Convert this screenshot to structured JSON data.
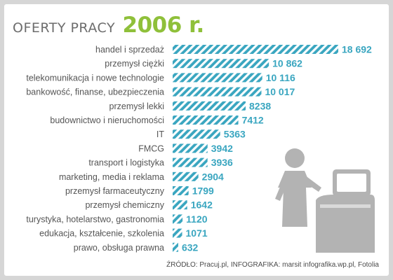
{
  "header": {
    "title": "OFERTY PRACY",
    "year": "2006 r."
  },
  "footer": {
    "source": "ŹRÓDŁO: Pracuj.pl, INFOGRAFIKA: marsit infografika.wp.pl, Fotolia"
  },
  "colors": {
    "bar": "#3aa6c0",
    "value": "#3aa6c0",
    "year": "#8fc03a",
    "illustration": "#b3b3b3"
  },
  "illustration": {
    "icon": "person-at-computer-icon"
  },
  "chart_data": {
    "type": "bar",
    "orientation": "horizontal",
    "categories": [
      "handel i sprzedaż",
      "przemysł ciężki",
      "telekomunikacja i nowe technologie",
      "bankowość, finanse, ubezpieczenia",
      "przemysł lekki",
      "budownictwo i nieruchomości",
      "IT",
      "FMCG",
      "transport i logistyka",
      "marketing, media i reklama",
      "przemysł farmaceutyczny",
      "przemysł chemiczny",
      "turystyka, hotelarstwo, gastronomia",
      "edukacja, kształcenie, szkolenia",
      "prawo, obsługa prawna"
    ],
    "values": [
      18692,
      10862,
      10116,
      10017,
      8238,
      7412,
      5363,
      3942,
      3936,
      2904,
      1799,
      1642,
      1120,
      1071,
      632
    ],
    "value_labels": [
      "18 692",
      "10 862",
      "10 116",
      "10 017",
      "8238",
      "7412",
      "5363",
      "3942",
      "3936",
      "2904",
      "1799",
      "1642",
      "1120",
      "1071",
      "632"
    ],
    "xlim": [
      0,
      18692
    ],
    "grid": false,
    "legend": "none"
  }
}
